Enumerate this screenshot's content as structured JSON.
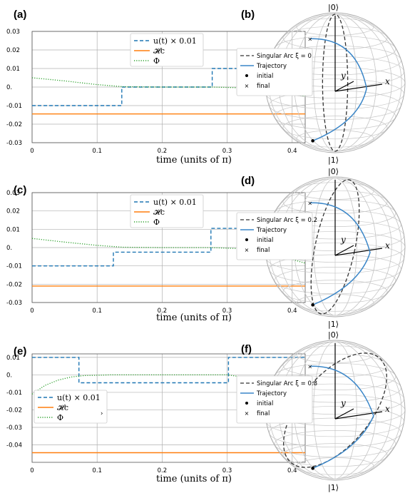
{
  "chart_data": [
    {
      "panel": "(a)",
      "type": "line",
      "xlabel": "time (units of π)",
      "xlim": [
        0,
        0.42
      ],
      "ylim": [
        -0.03,
        0.03
      ],
      "xticks": [
        0,
        0.1,
        0.2,
        0.3,
        0.4
      ],
      "xtick_labels": [
        "0",
        "0.1",
        "0.2",
        "0.3",
        "0.4"
      ],
      "yticks": [
        -0.03,
        -0.02,
        -0.01,
        0,
        0.01,
        0.02,
        0.03
      ],
      "ytick_labels": [
        "-0.03",
        "-0.02",
        "-0.01",
        "0.",
        "0.01",
        "0.02",
        "0.03"
      ],
      "legend": {
        "position": "top-right",
        "entries": [
          "u(t) × 0.01",
          "𝓗c",
          "Φ"
        ]
      },
      "series": [
        {
          "name": "u(t) × 0.01",
          "color": "#1f77b4",
          "style": "dashed",
          "x": [
            0,
            0.138,
            0.138,
            0.277,
            0.277,
            0.42
          ],
          "y": [
            -0.01,
            -0.01,
            0,
            0,
            0.01,
            0.01
          ]
        },
        {
          "name": "𝓗c",
          "color": "#ff7f0e",
          "style": "solid",
          "x": [
            0,
            0.42
          ],
          "y": [
            -0.0145,
            -0.0145
          ]
        },
        {
          "name": "Φ",
          "color": "#2ca02c",
          "style": "dotted",
          "x": [
            0,
            0.05,
            0.1,
            0.14,
            0.2,
            0.277,
            0.32,
            0.37,
            0.42
          ],
          "y": [
            0.005,
            0.0033,
            0.0013,
            0.0002,
            0,
            0,
            -0.0004,
            -0.0018,
            -0.005
          ]
        }
      ]
    },
    {
      "panel": "(c)",
      "type": "line",
      "xlabel": "time (units of π)",
      "xlim": [
        0,
        0.42
      ],
      "ylim": [
        -0.03,
        0.03
      ],
      "xticks": [
        0,
        0.1,
        0.2,
        0.3,
        0.4
      ],
      "xtick_labels": [
        "0",
        "0.1",
        "0.2",
        "0.3",
        "0.4"
      ],
      "yticks": [
        -0.03,
        -0.02,
        -0.01,
        0,
        0.01,
        0.02,
        0.03
      ],
      "ytick_labels": [
        "-0.03",
        "-0.02",
        "-0.01",
        "0.",
        "0.01",
        "0.02",
        "0.03"
      ],
      "legend": {
        "position": "top-right",
        "entries": [
          "u(t) × 0.01",
          "𝓗c",
          "Φ"
        ]
      },
      "series": [
        {
          "name": "u(t) × 0.01",
          "color": "#1f77b4",
          "style": "dashed",
          "x": [
            0,
            0.125,
            0.125,
            0.275,
            0.275,
            0.42
          ],
          "y": [
            -0.01,
            -0.01,
            -0.0025,
            -0.0025,
            0.0105,
            0.0105
          ]
        },
        {
          "name": "𝓗c",
          "color": "#ff7f0e",
          "style": "solid",
          "x": [
            0,
            0.42
          ],
          "y": [
            -0.021,
            -0.021
          ]
        },
        {
          "name": "Φ",
          "color": "#2ca02c",
          "style": "dotted",
          "x": [
            0,
            0.05,
            0.1,
            0.14,
            0.2,
            0.275,
            0.32,
            0.37,
            0.42
          ],
          "y": [
            0.005,
            0.003,
            0.0012,
            0.0002,
            0,
            0,
            -0.0006,
            -0.0035,
            -0.0085
          ]
        }
      ]
    },
    {
      "panel": "(e)",
      "type": "line",
      "xlabel": "time (units of π)",
      "xlim": [
        0,
        0.42
      ],
      "ylim": [
        -0.05,
        0.012
      ],
      "xticks": [
        0,
        0.1,
        0.2,
        0.3,
        0.4
      ],
      "xtick_labels": [
        "0",
        "0.1",
        "0.2",
        "0.3",
        "0.4"
      ],
      "yticks": [
        -0.04,
        -0.03,
        -0.02,
        -0.01,
        0,
        0.01
      ],
      "ytick_labels": [
        "-0.04",
        "-0.03",
        "-0.02",
        "-0.01",
        "0.",
        "0.01"
      ],
      "legend": {
        "position": "lower-left",
        "entries": [
          "u(t) × 0.01",
          "𝓗c",
          "Φ"
        ]
      },
      "series": [
        {
          "name": "u(t) × 0.01",
          "color": "#1f77b4",
          "style": "dashed",
          "x": [
            0,
            0.072,
            0.072,
            0.302,
            0.302,
            0.42
          ],
          "y": [
            0.01,
            0.01,
            -0.0045,
            -0.0045,
            0.01,
            0.01
          ]
        },
        {
          "name": "𝓗c",
          "color": "#ff7f0e",
          "style": "solid",
          "x": [
            0,
            0.42
          ],
          "y": [
            -0.0445,
            -0.0445
          ]
        },
        {
          "name": "Φ",
          "color": "#2ca02c",
          "style": "dotted",
          "x": [
            0,
            0.02,
            0.04,
            0.06,
            0.08,
            0.12,
            0.2,
            0.3,
            0.33,
            0.36,
            0.39,
            0.42
          ],
          "y": [
            -0.011,
            -0.006,
            -0.003,
            -0.0012,
            -0.0004,
            0,
            0,
            0,
            -0.0015,
            -0.006,
            -0.013,
            -0.024
          ]
        }
      ]
    }
  ],
  "figure": {
    "panels_plot": [
      "(a)",
      "(c)",
      "(e)"
    ],
    "xlabel": "time (units of π)",
    "legend_labels": {
      "u": "u(t) × 0.01",
      "h": "𝓗c",
      "phi": "Φ"
    },
    "stray_mark": "›",
    "spheres": [
      {
        "panel": "(b)",
        "arc_label": "Singular Arc ξ = 0",
        "arc_tilt_deg": 0,
        "traj_label": "Trajectory",
        "initial_label": "initial",
        "final_label": "final",
        "north": "|0⟩",
        "south": "|1⟩",
        "x_axis": "x",
        "y_axis": "y"
      },
      {
        "panel": "(d)",
        "arc_label": "Singular Arc ξ = 0.2",
        "arc_tilt_deg": 12,
        "traj_label": "Trajectory",
        "initial_label": "initial",
        "final_label": "final",
        "north": "|0⟩",
        "south": "|1⟩",
        "x_axis": "x",
        "y_axis": "y"
      },
      {
        "panel": "(f)",
        "arc_label": "Singular Arc ξ = 0.8",
        "arc_tilt_deg": 40,
        "traj_label": "Trajectory",
        "initial_label": "initial",
        "final_label": "final",
        "north": "|0⟩",
        "south": "|1⟩",
        "x_axis": "x",
        "y_axis": "y"
      }
    ],
    "colors": {
      "u": "#1f77b4",
      "h": "#ff7f0e",
      "phi": "#2ca02c",
      "grid": "#b0b0b0",
      "sphere": "#c8c8c8",
      "arc": "#333333",
      "traj": "#3a86c8"
    }
  }
}
